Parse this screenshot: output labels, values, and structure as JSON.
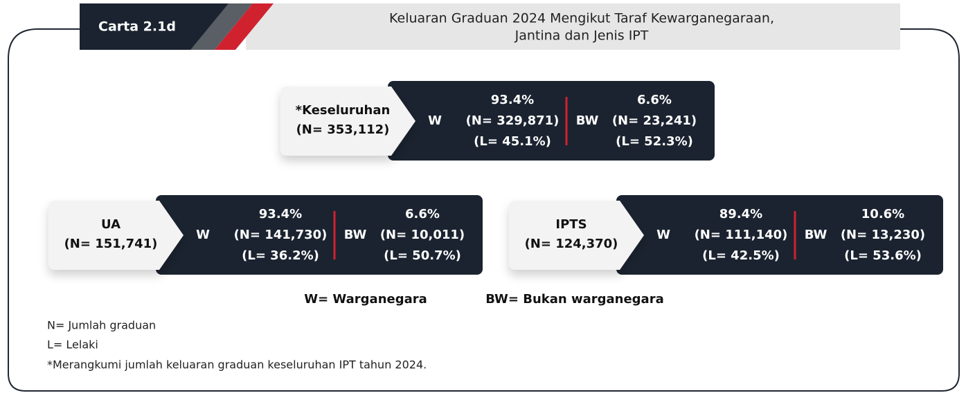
{
  "header": {
    "label": "Carta 2.1d",
    "title": [
      "Keluaran Graduan 2024 Mengikut Taraf Kewarganegaraan,",
      "Jantina dan Jenis IPT"
    ]
  },
  "boxes": [
    {
      "name": "*Keseluruhan",
      "total": "(N= 353,112)",
      "citizen": {
        "code": "W",
        "percent": "93.4%",
        "n": "(N= 329,871)",
        "l": "(L= 45.1%)"
      },
      "noncitizen": {
        "code": "BW",
        "percent": "6.6%",
        "n": "(N= 23,241)",
        "l": "(L= 52.3%)"
      }
    },
    {
      "name": "UA",
      "total": "(N= 151,741)",
      "citizen": {
        "code": "W",
        "percent": "93.4%",
        "n": "(N= 141,730)",
        "l": "(L= 36.2%)"
      },
      "noncitizen": {
        "code": "BW",
        "percent": "6.6%",
        "n": "(N= 10,011)",
        "l": "(L= 50.7%)"
      }
    },
    {
      "name": "IPTS",
      "total": "(N= 124,370)",
      "citizen": {
        "code": "W",
        "percent": "89.4%",
        "n": "(N= 111,140)",
        "l": "(L= 42.5%)"
      },
      "noncitizen": {
        "code": "BW",
        "percent": "10.6%",
        "n": "(N= 13,230)",
        "l": "(L= 53.6%)"
      }
    }
  ],
  "legend": [
    "W= Warganegara",
    "BW= Bukan warganegara"
  ],
  "notes": [
    "N= Jumlah graduan",
    "L= Lelaki",
    "*Merangkumi jumlah keluaran graduan keseluruhan IPT tahun 2024."
  ]
}
